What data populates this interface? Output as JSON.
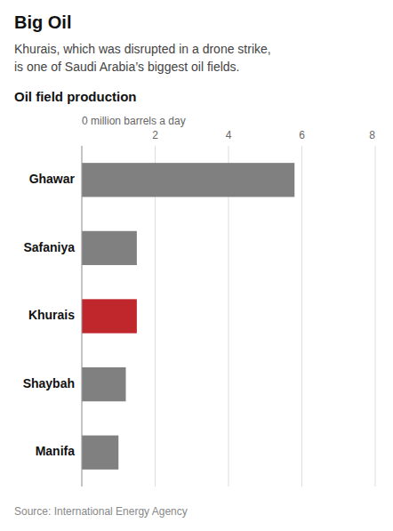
{
  "chart_data": {
    "type": "bar",
    "orientation": "horizontal",
    "title": "Big Oil",
    "subtitle": "Khurais, which was disrupted in a drone strike,\nis one of Saudi Arabia’s biggest oil fields.",
    "annotations": [
      "Oil field production"
    ],
    "source": "Source: International Energy Agency",
    "categories": [
      "Ghawar",
      "Safaniya",
      "Khurais",
      "Shaybah",
      "Manifa"
    ],
    "values": [
      5.8,
      1.5,
      1.5,
      1.2,
      1.0
    ],
    "colors": [
      "#808080",
      "#808080",
      "#c0272d",
      "#808080",
      "#808080"
    ],
    "xlim": [
      0,
      8
    ],
    "xticks": [
      {
        "value": 0,
        "label": "0 million barrels a day"
      },
      2,
      4,
      6,
      8
    ],
    "grid": true
  }
}
